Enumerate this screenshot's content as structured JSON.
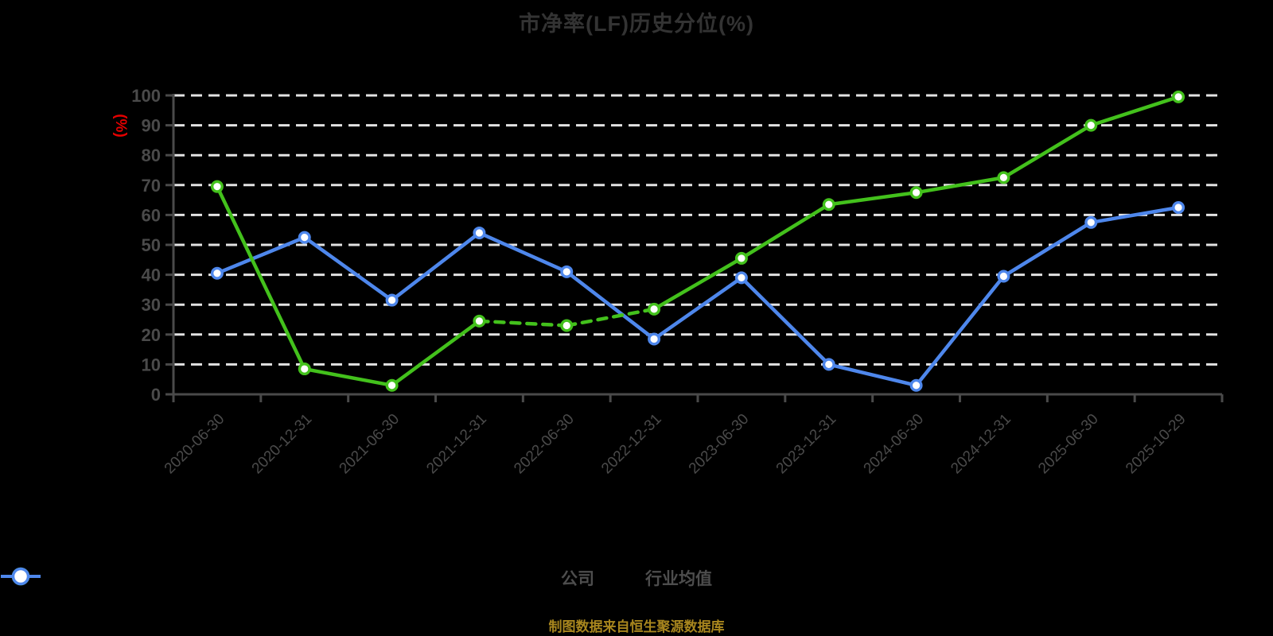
{
  "title": {
    "text": "市净率(LF)历史分位(%)",
    "color": "#333333"
  },
  "y_axis": {
    "name": "(%)",
    "name_color": "#e60000",
    "min": 0,
    "max": 100,
    "step": 10,
    "labels": [
      "0",
      "10",
      "20",
      "30",
      "40",
      "50",
      "60",
      "70",
      "80",
      "90",
      "100"
    ]
  },
  "footer": {
    "text": "制图数据来自恒生聚源数据库"
  },
  "colors": {
    "background": "#000000",
    "gridline": "#e2e2e2",
    "axis": "#4a4a4a",
    "tick_label": "#4a4a4a",
    "marker_fill": "#ffffff"
  },
  "chart_data": {
    "type": "line",
    "title": "市净率(LF)历史分位(%)",
    "xlabel": "",
    "ylabel": "(%)",
    "ylim": [
      0,
      100
    ],
    "grid": "horizontal-dashed-white",
    "legend_position": "bottom",
    "categories": [
      "2020-06-30",
      "2020-12-31",
      "2021-06-30",
      "2021-12-31",
      "2022-06-30",
      "2022-12-31",
      "2023-06-30",
      "2023-12-31",
      "2024-06-30",
      "2024-12-31",
      "2025-06-30",
      "2025-10-29"
    ],
    "series": [
      {
        "name": "公司",
        "color": "#43c11c",
        "values": [
          69.5,
          8.5,
          3,
          24.5,
          23,
          28.5,
          45.5,
          63.5,
          67.5,
          72.5,
          90,
          99.5
        ],
        "dash_segments": [
          3,
          4
        ]
      },
      {
        "name": "行业均值",
        "color": "#4e87ec",
        "values": [
          40.5,
          52.5,
          31.5,
          54,
          41,
          18.5,
          39,
          10,
          3,
          39.5,
          57.5,
          62.5
        ],
        "dash_segments": []
      }
    ]
  }
}
